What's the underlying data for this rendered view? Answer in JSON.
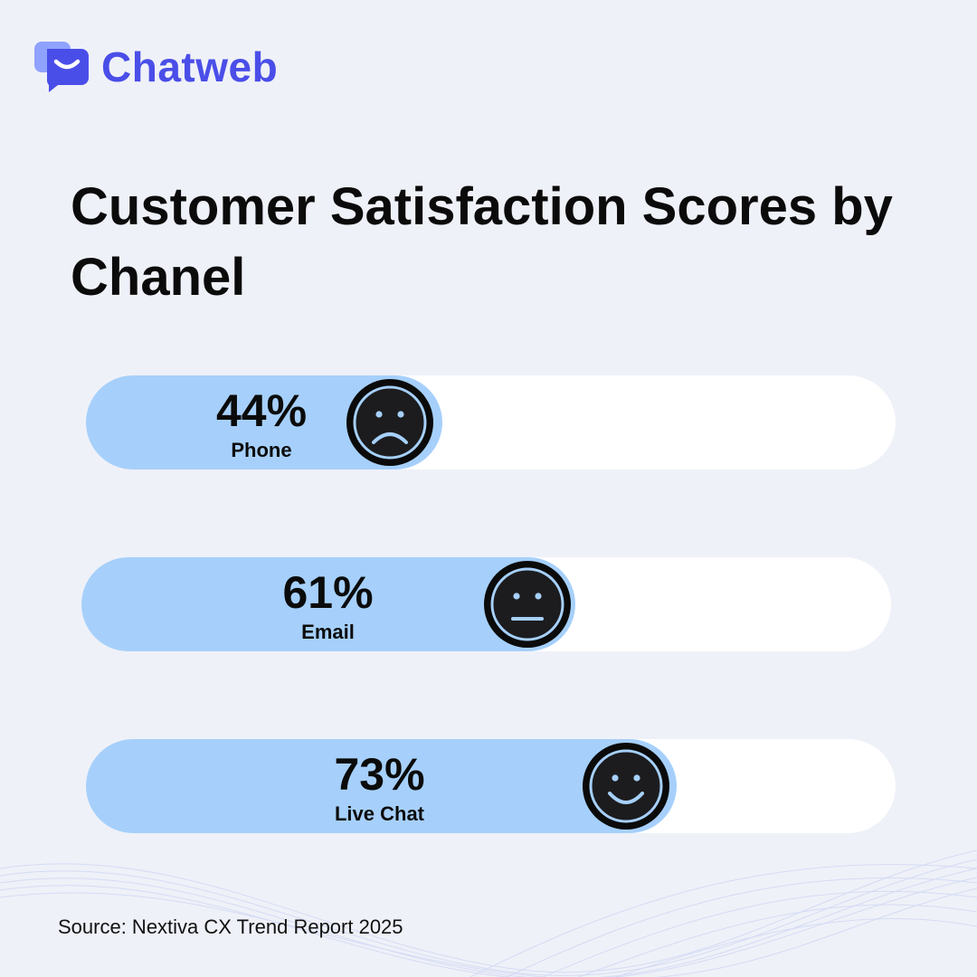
{
  "brand": {
    "name": "Chatweb",
    "icon": "chat-smile-icon",
    "color": "#4a4ee8"
  },
  "chart_data": {
    "type": "bar",
    "orientation": "horizontal",
    "title": "Customer Satisfaction Scores by Chanel",
    "categories": [
      "Phone",
      "Email",
      "Live Chat"
    ],
    "values": [
      44,
      61,
      73
    ],
    "value_labels": [
      "44%",
      "61%",
      "73%"
    ],
    "faces": [
      "sad-face-icon",
      "neutral-face-icon",
      "happy-face-icon"
    ],
    "ylim": [
      0,
      100
    ],
    "unit": "%",
    "fill_color": "#a6d0fb",
    "track_color": "#ffffff",
    "grid": false
  },
  "source": "Source: Nextiva CX Trend Report 2025"
}
